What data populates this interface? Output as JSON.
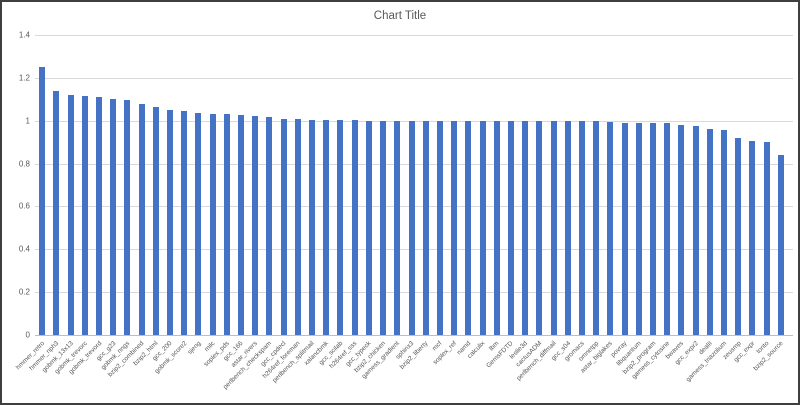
{
  "chart_data": {
    "type": "bar",
    "title": "Chart Title",
    "xlabel": "",
    "ylabel": "",
    "ylim": [
      0,
      1.4
    ],
    "yticks": [
      0,
      0.2,
      0.4,
      0.6,
      0.8,
      1,
      1.2,
      1.4
    ],
    "ytick_labels": [
      "0",
      "0.2",
      "0.4",
      "0.6",
      "0.8",
      "1",
      "1.2",
      "1.4"
    ],
    "grid": true,
    "legend": false,
    "bar_color": "#4472c4",
    "gridline_color": "#d9d9d9",
    "axis_line_color": "#bfbfbf",
    "text_color": "#595959",
    "frame_color": "#3f3f3f",
    "categories": [
      "hmmer_retro",
      "hmmer_nph3",
      "gobmk_13x13",
      "gobmk_trevorc",
      "gobmk_trevord",
      "gcc_g23",
      "gobmk_nngs",
      "bzip2_combined",
      "bzip2_html",
      "gcc_200",
      "gobmk_score2",
      "sjeng",
      "milc",
      "soplex_pds",
      "gcc_166",
      "astar_rivers",
      "perlbench_checkspam",
      "gcc_cpdecl",
      "h264ref_foreman",
      "perlbench_splitmail",
      "xalancbmk",
      "gcc_scilab",
      "h264ref_sss",
      "gcc_typeck",
      "bzip2_chicken",
      "gamess_gradient",
      "sphinx3",
      "bzip2_liberty",
      "mcf",
      "soplex_ref",
      "namd",
      "calculix",
      "lbm",
      "GemsFDTD",
      "leslie3d",
      "cactusADM",
      "perlbench_diffmail",
      "gcc_s04",
      "gromacs",
      "omnetpp",
      "astar_biglakes",
      "povray",
      "libquantum",
      "bzip2_program",
      "gamess_cytosine",
      "bwaves",
      "gcc_expr2",
      "dealII",
      "gamess_triazolium",
      "zeusmp",
      "gcc_expr",
      "tonto",
      "bzip2_source"
    ],
    "values": [
      1.25,
      1.14,
      1.12,
      1.115,
      1.11,
      1.1,
      1.095,
      1.08,
      1.065,
      1.05,
      1.045,
      1.035,
      1.03,
      1.03,
      1.025,
      1.02,
      1.015,
      1.01,
      1.008,
      1.005,
      1.003,
      1.002,
      1.001,
      1.0,
      1.0,
      1.0,
      1.0,
      1.0,
      1.0,
      1.0,
      1.0,
      1.0,
      1.0,
      1.0,
      1.0,
      1.0,
      1.0,
      1.0,
      0.999,
      0.998,
      0.995,
      0.99,
      0.99,
      0.99,
      0.988,
      0.98,
      0.975,
      0.96,
      0.955,
      0.92,
      0.905,
      0.9,
      0.84
    ]
  }
}
